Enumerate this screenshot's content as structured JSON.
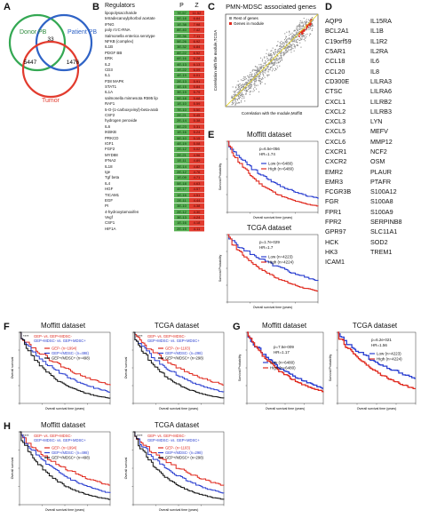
{
  "panels": {
    "a": "A",
    "b": "B",
    "c": "C",
    "d": "D",
    "e": "E",
    "f": "F",
    "g": "G",
    "h": "H"
  },
  "venn": {
    "donor_label": "Donor PB",
    "patient_label": "Patient PB",
    "tumor_label": "Tumor",
    "n_donor_patient": "33",
    "n_donor_tumor": "5447",
    "n_patient_tumor": "1476",
    "colors": {
      "donor": "#34a853",
      "patient": "#2f63c6",
      "tumor": "#e23b2e"
    }
  },
  "regulators": {
    "col_regulators": "Regulators",
    "col_p": "P",
    "col_z": "Z",
    "rows": [
      {
        "name": "lipopolysaccharide",
        "p": "7E-57",
        "z": "11.52"
      },
      {
        "name": "tetradecanoylphorbol acetate",
        "p": "5E-18",
        "z": "6.84"
      },
      {
        "name": "IFNG",
        "p": "1E-38",
        "z": "7.98"
      },
      {
        "name": "poly rI:rC-RNA",
        "p": "8E-40",
        "z": "7.42"
      },
      {
        "name": "Salmonella enterica serotype",
        "p": "2E-36",
        "z": "7.11"
      },
      {
        "name": "NFKB (complex)",
        "p": "5E-26",
        "z": "6.92"
      },
      {
        "name": "IL1B",
        "p": "3E-32",
        "z": "6.84"
      },
      {
        "name": "PDGF BB",
        "p": "8E-22",
        "z": "6.52"
      },
      {
        "name": "ERK",
        "p": "6E-16",
        "z": "6.28"
      },
      {
        "name": "IL2",
        "p": "4E-13",
        "z": "6.13"
      },
      {
        "name": "CD3",
        "p": "1E-22",
        "z": "6.09"
      },
      {
        "name": "IL1",
        "p": "4E-19",
        "z": "6.01"
      },
      {
        "name": "P38 MAPK",
        "p": "2E-13",
        "z": "5.91"
      },
      {
        "name": "STAT1",
        "p": "4E-15",
        "z": "5.84"
      },
      {
        "name": "IL1A",
        "p": "3E-19",
        "z": "5.79"
      },
      {
        "name": "salmonella minnesota R595 lip",
        "p": "5E-18",
        "z": "5.68"
      },
      {
        "name": "RAF1",
        "p": "1E-10",
        "z": "5.59"
      },
      {
        "name": "5-O-(1-carboxyvinyl)-beta-arab",
        "p": "7E-10",
        "z": "5.50"
      },
      {
        "name": "CSF2",
        "p": "2E-21",
        "z": "5.45"
      },
      {
        "name": "hydrogen peroxide",
        "p": "2E-14",
        "z": "5.38"
      },
      {
        "name": "IL6",
        "p": "8E-23",
        "z": "5.31"
      },
      {
        "name": "IKBKB",
        "p": "1E-16",
        "z": "5.24"
      },
      {
        "name": "PRKCD",
        "p": "5E-10",
        "z": "5.15"
      },
      {
        "name": "IGF1",
        "p": "4E-19",
        "z": "5.08"
      },
      {
        "name": "FGF2",
        "p": "2E-12",
        "z": "5.02"
      },
      {
        "name": "MYD88",
        "p": "2E-21",
        "z": "4.96"
      },
      {
        "name": "IFNA2",
        "p": "1E-11",
        "z": "4.89"
      },
      {
        "name": "IL18",
        "p": "2E-14",
        "z": "4.82"
      },
      {
        "name": "Ige",
        "p": "2E-12",
        "z": "4.76"
      },
      {
        "name": "Tgf beta",
        "p": "1E-09",
        "z": "4.71"
      },
      {
        "name": "IL4",
        "p": "5E-18",
        "z": "4.63"
      },
      {
        "name": "HGF",
        "p": "4E-17",
        "z": "4.57"
      },
      {
        "name": "TICAM1",
        "p": "1E-16",
        "z": "4.51"
      },
      {
        "name": "EGF",
        "p": "2E-11",
        "z": "4.44"
      },
      {
        "name": "PI",
        "p": "3E-10",
        "z": "4.38"
      },
      {
        "name": "4-hydroxytamoxifen",
        "p": "2E-12",
        "z": "4.30"
      },
      {
        "name": "Vegf",
        "p": "3E-13",
        "z": "4.24"
      },
      {
        "name": "CSF1",
        "p": "1E-16",
        "z": "4.18"
      },
      {
        "name": "HIF1A",
        "p": "2E-15",
        "z": "4.11"
      }
    ]
  },
  "scatter": {
    "title": "PMN-MDSC associated genes",
    "ylabel": "Correlation with the module,TCGA",
    "xlabel": "Correlation with the module,Moffitt",
    "legend_rest": "Rest of genes",
    "legend_module": "Genes in module"
  },
  "genes": {
    "col1": [
      "AQP9",
      "BCL2A1",
      "C19orf59",
      "C5AR1",
      "CCL18",
      "CCL20",
      "CD300E",
      "CTSC",
      "CXCL1",
      "CXCL2",
      "CXCL3",
      "CXCL5",
      "CXCL6",
      "CXCR1",
      "CXCR2",
      "EMR2",
      "EMR3",
      "FCGR3B",
      "FGR",
      "FPR1",
      "FPR2",
      "GPR97",
      "HCK",
      "HK3",
      "ICAM1"
    ],
    "col2": [
      "IL15RA",
      "IL1B",
      "IL1R2",
      "IL2RA",
      "IL6",
      "IL8",
      "LILRA3",
      "LILRA6",
      "LILRB2",
      "LILRB3",
      "LYN",
      "MEFV",
      "MMP12",
      "NCF2",
      "OSM",
      "PLAUR",
      "PTAFR",
      "S100A12",
      "S100A8",
      "S100A9",
      "SERPINB8",
      "SLC11A1",
      "SOD2",
      "TREM1",
      ""
    ]
  },
  "km_e": {
    "moffitt_title": "Moffitt dataset",
    "moffitt_p": "p=6.5e-056",
    "moffitt_hr": "HR=1.74",
    "moffitt_low": "Low (n=6480)",
    "moffitt_high": "High (n=6480)",
    "tcga_title": "TCGA dataset",
    "tcga_p": "p=1.7e-029",
    "tcga_hr": "HR=1.7",
    "tcga_low": "Low (n=4223)",
    "tcga_high": "High (n=4224)",
    "ylabel": "Survival Probability",
    "xlabel": "Overall survival time (years)"
  },
  "km_f": {
    "moffitt_title": "Moffitt dataset",
    "tcga_title": "TCGA dataset",
    "m_stars": "****",
    "m_cmp1": "GEP- vs. GEP+MDSC-",
    "m_cmp2": "GEP+MDSC- vs. GEP+MDSC+",
    "m_legend": [
      "GEP- (n=1994)",
      "GEP+/MDSC- (n=498)",
      "GEP+/MDSC+ (n=498)"
    ],
    "t_stars": "****",
    "t_cmp1": "GEP- vs. GEP+MDSC-",
    "t_cmp2": "GEP+MDSC- vs. GEP+MDSC+",
    "t_legend": [
      "GEP- (n=1103)",
      "GEP+/MDSC- (n=298)",
      "GEP+/MDSC+ (n=298)"
    ],
    "ylabel": "Overall survival",
    "xlabel": "Overall survival time (years)"
  },
  "km_g": {
    "moffitt_title": "Moffitt dataset",
    "tcga_title": "TCGA dataset",
    "m_p": "p=7.5e-009",
    "m_hr": "HR=1.17",
    "m_low": "Low (n=6480)",
    "m_high": "High (n=6480)",
    "t_p": "p=6.2e-021",
    "t_hr": "HR=1.56",
    "t_low": "Low (n=4223)",
    "t_high": "High (n=4224)",
    "ylabel": "Survival Probability",
    "xlabel": "Overall survival time (years)"
  },
  "km_h": {
    "moffitt_title": "Moffitt dataset",
    "tcga_title": "TCGA dataset",
    "m_stars": "****",
    "m_cmp1": "GEP- vs. GEP+MDSC-",
    "m_cmp2": "GEP+MDSC- vs. GEP+MDSC+",
    "m_legend": [
      "GEP- (n=1994)",
      "GEP+/MDSC- (n=498)",
      "GEP+/MDSC+ (n=498)"
    ],
    "t_stars": "****",
    "t_cmp1": "GEP- vs. GEP+MDSC-",
    "t_cmp2": "GEP+MDSC- vs. GEP+MDSC+",
    "t_legend": [
      "GEP- (n=1103)",
      "GEP+/MDSC- (n=298)",
      "GEP+/MDSC+ (n=298)"
    ],
    "ylabel": "Overall survival",
    "xlabel": "Overall survival time (years)"
  },
  "colors": {
    "red": "#e02a1f",
    "blue": "#2a3fd0",
    "black": "#111111",
    "green": "#4caf50",
    "grey": "#9a9a9a"
  }
}
